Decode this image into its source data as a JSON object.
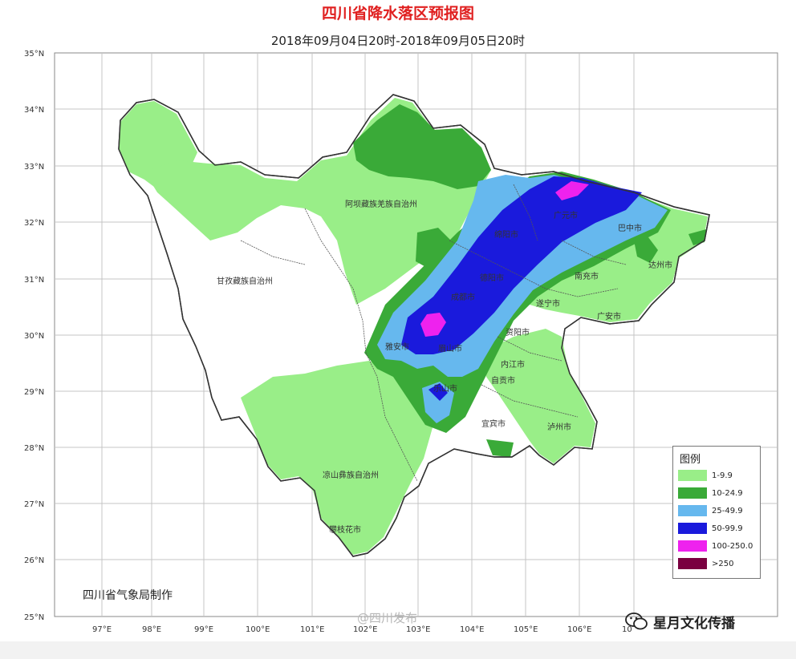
{
  "header": {
    "title": "四川省降水落区预报图",
    "subtitle": "2018年09月04日20时-2018年09月05日20时"
  },
  "axes": {
    "latitude_labels": [
      "35°N",
      "34°N",
      "33°N",
      "32°N",
      "31°N",
      "30°N",
      "29°N",
      "28°N",
      "27°N",
      "26°N",
      "25°N"
    ],
    "longitude_labels": [
      "97°E",
      "98°E",
      "99°E",
      "100°E",
      "101°E",
      "102°E",
      "103°E",
      "104°E",
      "105°E",
      "106°E",
      "10"
    ]
  },
  "places": {
    "aba": "阿坝藏族羌族自治州",
    "ganzi": "甘孜藏族自治州",
    "liangshan": "凉山彝族自治州",
    "panzhihua": "攀枝花市",
    "yaan": "雅安市",
    "meishan": "眉山市",
    "leshan": "乐山市",
    "chengdu": "成都市",
    "deyang": "德阳市",
    "mianyang": "绵阳市",
    "guangyuan": "广元市",
    "bazhong": "巴中市",
    "dazhou": "达州市",
    "nanchong": "南充市",
    "suining": "遂宁市",
    "guangan": "广安市",
    "ziyang": "资阳市",
    "neijiang": "内江市",
    "zigong": "自贡市",
    "yibin": "宜宾市",
    "luzhou": "泸州市"
  },
  "legend": {
    "title": "图例",
    "items": [
      {
        "label": "1-9.9",
        "color": "#99ee88"
      },
      {
        "label": "10-24.9",
        "color": "#3aaa38"
      },
      {
        "label": "25-49.9",
        "color": "#66b8ee"
      },
      {
        "label": "50-99.9",
        "color": "#1a1adc"
      },
      {
        "label": "100-250.0",
        "color": "#ee22ee"
      },
      {
        "label": ">250",
        "color": "#7a0040"
      }
    ]
  },
  "footer": {
    "credit": "四川省气象局制作",
    "watermark": "@四川发布",
    "brand": "星月文化传播"
  },
  "colors": {
    "title": "#e02020",
    "boundary": "#333333",
    "grid": "#bbbbbb"
  }
}
